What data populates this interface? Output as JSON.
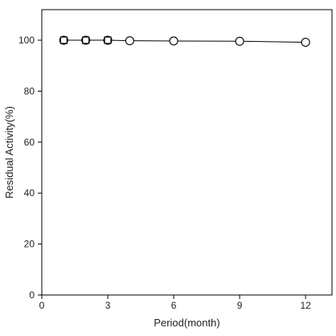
{
  "chart_data": {
    "type": "scatter",
    "title": "",
    "xlabel": "Period(month)",
    "ylabel": "Residual Activity(%)",
    "xlim": [
      0,
      13.2
    ],
    "ylim": [
      0,
      112
    ],
    "xticks": [
      0,
      3,
      6,
      9,
      12
    ],
    "yticks": [
      0,
      20,
      40,
      60,
      80,
      100
    ],
    "grid": false,
    "legend": "none",
    "series": [
      {
        "marker": "circle",
        "line": true,
        "color": "#000000",
        "x": [
          1,
          2,
          3,
          4,
          6,
          9,
          12
        ],
        "y": [
          100,
          100,
          100,
          99.8,
          99.7,
          99.6,
          99.2
        ]
      },
      {
        "marker": "square",
        "line": false,
        "color": "#000000",
        "x": [
          1,
          2,
          3
        ],
        "y": [
          100,
          100,
          100
        ]
      }
    ]
  }
}
